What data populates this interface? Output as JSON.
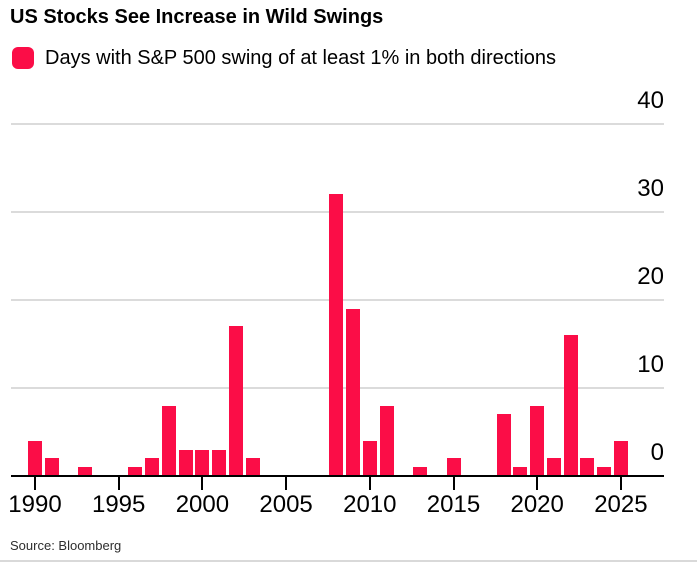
{
  "header": {
    "title": "US Stocks See Increase in Wild Swings"
  },
  "legend": {
    "label": "Days with S&P 500 swing of at least 1% in both directions",
    "marker_color": "#FB0D47"
  },
  "footer": {
    "source": "Source: Bloomberg"
  },
  "colors": {
    "bar": "#FB0D47",
    "gridline": "#DBDBDB",
    "axis": "#000000",
    "text": "#000000"
  },
  "chart_data": {
    "type": "bar",
    "title": "US Stocks See Increase in Wild Swings",
    "series_label": "Days with S&P 500 swing of at least 1% in both directions",
    "x": [
      1990,
      1991,
      1992,
      1993,
      1994,
      1995,
      1996,
      1997,
      1998,
      1999,
      2000,
      2001,
      2002,
      2003,
      2004,
      2005,
      2006,
      2007,
      2008,
      2009,
      2010,
      2011,
      2012,
      2013,
      2014,
      2015,
      2016,
      2017,
      2018,
      2019,
      2020,
      2021,
      2022,
      2023,
      2024,
      2025
    ],
    "values": [
      4,
      2,
      0,
      1,
      0,
      0,
      1,
      2,
      8,
      3,
      3,
      3,
      17,
      2,
      0,
      0,
      0,
      0,
      32,
      19,
      4,
      8,
      0,
      1,
      0,
      2,
      0,
      0,
      7,
      1,
      8,
      2,
      16,
      2,
      1,
      4
    ],
    "x_tick_labels": [
      "1990",
      "1995",
      "2000",
      "2005",
      "2010",
      "2015",
      "2020",
      "2025"
    ],
    "y_tick_labels": [
      "0",
      "10",
      "20",
      "30",
      "40"
    ],
    "xlabel": "",
    "ylabel": "",
    "ylim": [
      0,
      40
    ],
    "grid": "horizontal",
    "legend_position": "top-left",
    "y_axis_side": "right",
    "bar_color": "#FB0D47"
  }
}
